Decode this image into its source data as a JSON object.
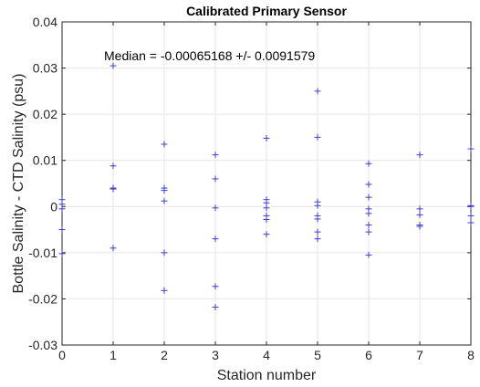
{
  "chart_data": {
    "type": "scatter",
    "title": "Calibrated Primary Sensor",
    "xlabel": "Station number",
    "ylabel": "Bottle Salinity - CTD Salinity (psu)",
    "xlim": [
      0,
      8
    ],
    "ylim": [
      -0.03,
      0.04
    ],
    "xticks": [
      0,
      1,
      2,
      3,
      4,
      5,
      6,
      7,
      8
    ],
    "yticks": [
      -0.03,
      -0.02,
      -0.01,
      0,
      0.01,
      0.02,
      0.03,
      0.04
    ],
    "xtick_labels": [
      "0",
      "1",
      "2",
      "3",
      "4",
      "5",
      "6",
      "7",
      "8"
    ],
    "ytick_labels": [
      "-0.03",
      "-0.02",
      "-0.01",
      "0",
      "0.01",
      "0.02",
      "0.03",
      "0.04"
    ],
    "grid": true,
    "marker": "+",
    "marker_color": "#3b3bd6",
    "annotation": "Median = -0.00065168 +/- 0.0091579",
    "series": [
      {
        "points": [
          [
            0,
            0.0015
          ],
          [
            0,
            0.0005
          ],
          [
            0,
            -0.0005
          ],
          [
            0,
            -0.005
          ],
          [
            0,
            -0.0102
          ],
          [
            1,
            0.0305
          ],
          [
            1,
            0.0088
          ],
          [
            1,
            0.004
          ],
          [
            1,
            0.0038
          ],
          [
            1,
            -0.009
          ],
          [
            2,
            0.0135
          ],
          [
            2,
            0.004
          ],
          [
            2,
            0.0035
          ],
          [
            2,
            0.0012
          ],
          [
            2,
            -0.01
          ],
          [
            2,
            -0.0182
          ],
          [
            3,
            0.0112
          ],
          [
            3,
            0.006
          ],
          [
            3,
            -0.0003
          ],
          [
            3,
            -0.007
          ],
          [
            3,
            -0.0173
          ],
          [
            3,
            -0.0218
          ],
          [
            4,
            0.0148
          ],
          [
            4,
            0.0015
          ],
          [
            4,
            0.0008
          ],
          [
            4,
            -0.0003
          ],
          [
            4,
            -0.002
          ],
          [
            4,
            -0.0028
          ],
          [
            4,
            -0.006
          ],
          [
            5,
            0.025
          ],
          [
            5,
            0.015
          ],
          [
            5,
            0.001
          ],
          [
            5,
            0.0002
          ],
          [
            5,
            -0.002
          ],
          [
            5,
            -0.0027
          ],
          [
            5,
            -0.0055
          ],
          [
            5,
            -0.007
          ],
          [
            6,
            0.0093
          ],
          [
            6,
            0.0048
          ],
          [
            6,
            0.002
          ],
          [
            6,
            -0.0005
          ],
          [
            6,
            -0.0015
          ],
          [
            6,
            -0.004
          ],
          [
            6,
            -0.0055
          ],
          [
            6,
            -0.0105
          ],
          [
            7,
            0.0112
          ],
          [
            7,
            -0.0005
          ],
          [
            7,
            -0.0018
          ],
          [
            7,
            -0.004
          ],
          [
            7,
            -0.0043
          ],
          [
            8,
            0.0125
          ],
          [
            8,
            0.0002
          ],
          [
            8,
            0.0
          ],
          [
            8,
            -0.002
          ],
          [
            8,
            -0.0035
          ]
        ]
      }
    ]
  }
}
